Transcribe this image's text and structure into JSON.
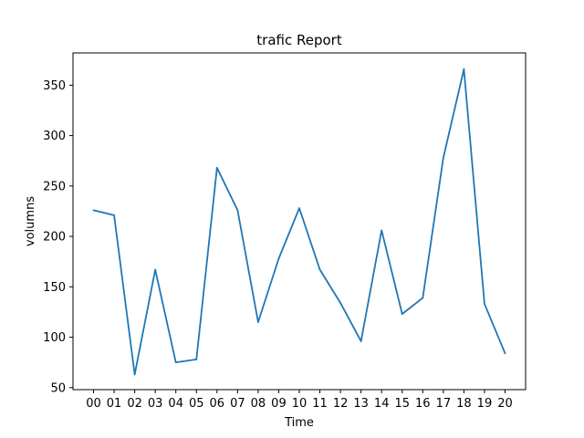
{
  "chart_data": {
    "type": "line",
    "title": "trafic Report",
    "xlabel": "Time",
    "ylabel": "volumns",
    "categories": [
      "00",
      "01",
      "02",
      "03",
      "04",
      "05",
      "06",
      "07",
      "08",
      "09",
      "10",
      "11",
      "12",
      "13",
      "14",
      "15",
      "16",
      "17",
      "18",
      "19",
      "20"
    ],
    "series": [
      {
        "values": [
          226,
          221,
          63,
          167,
          75,
          78,
          268,
          226,
          115,
          178,
          228,
          167,
          134,
          96,
          206,
          123,
          139,
          278,
          366,
          133,
          84
        ]
      }
    ],
    "yticks": [
      50,
      100,
      150,
      200,
      250,
      300,
      350
    ],
    "ylim": [
      48,
      382
    ],
    "grid": false,
    "line_color": "#1f77b4"
  }
}
